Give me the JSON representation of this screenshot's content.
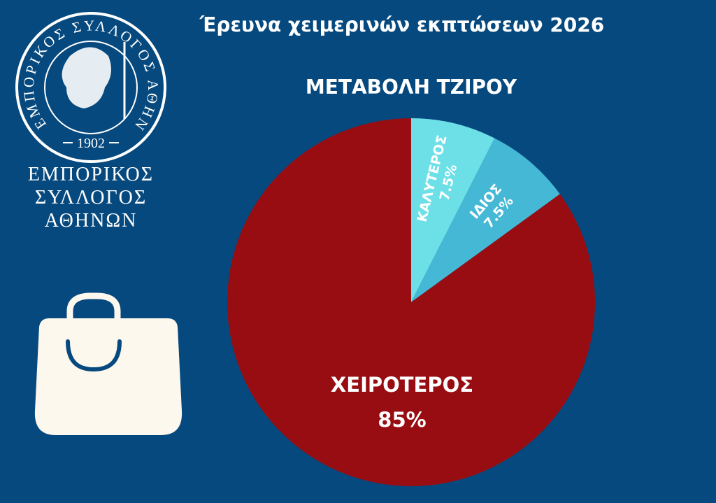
{
  "logo": {
    "ring_text": "ΕΜΠΟΡΙΚΟΣ ΣΥΛΛΟΓΟΣ ΑΘΗΝΩΝ",
    "year": "1902",
    "name_lines": [
      "ΕΜΠΟΡΙΚΟΣ",
      "ΣΥΛΛΟΓΟΣ",
      "ΑΘΗΝΩΝ"
    ]
  },
  "chart_data": {
    "type": "pie",
    "title": "Έρευνα χειμερινών εκπτώσεων 2026",
    "subtitle": "ΜΕΤΑΒΟΛΗ ΤΖΙΡΟΥ",
    "categories": [
      "ΚΑΛΥΤΕΡΟΣ",
      "ΙΔΙΟΣ",
      "ΧΕΙΡΟΤΕΡΟΣ"
    ],
    "values": [
      7.5,
      7.5,
      85
    ],
    "value_labels": [
      "7.5%",
      "7.5%",
      "85%"
    ],
    "colors": [
      "#6ddfe6",
      "#45b8d5",
      "#980d11"
    ]
  }
}
